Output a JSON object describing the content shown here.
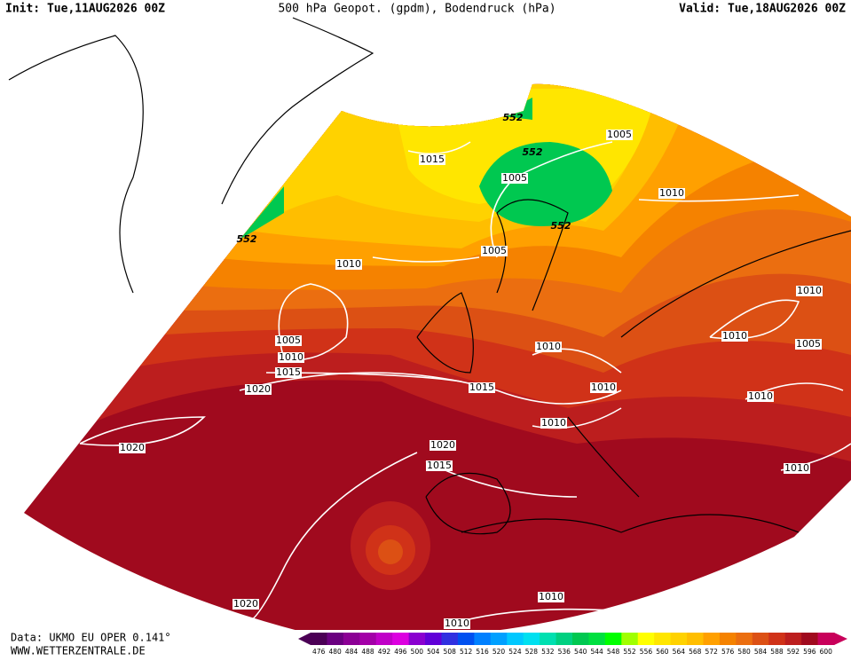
{
  "header": {
    "init": "Init: Tue,11AUG2026 00Z",
    "title": "500 hPa Geopot. (gpdm), Bodendruck (hPa)",
    "valid": "Valid: Tue,18AUG2026 00Z"
  },
  "contour_labels": [
    "552",
    "552",
    "1005",
    "1015",
    "1005",
    "1010",
    "552",
    "552",
    "1005",
    "1010",
    "1010",
    "1010",
    "1005",
    "1010",
    "1005",
    "1010",
    "1015",
    "1020",
    "1015",
    "1010",
    "1010",
    "1010",
    "1020",
    "1020",
    "1015",
    "1010",
    "1010",
    "1020",
    "1010"
  ],
  "footer": {
    "data": "Data: UKMO EU OPER 0.141°",
    "site": "WWW.WETTERZENTRALE.DE"
  },
  "colorbar": {
    "labels": [
      476,
      480,
      484,
      488,
      492,
      496,
      500,
      504,
      508,
      512,
      516,
      520,
      524,
      528,
      532,
      536,
      540,
      544,
      548,
      552,
      556,
      560,
      564,
      568,
      572,
      576,
      580,
      584,
      588,
      592,
      596,
      600
    ],
    "colors": [
      "#4b0055",
      "#6a0080",
      "#8b0095",
      "#a300a8",
      "#c000c8",
      "#dc00e0",
      "#8a00d0",
      "#6000d8",
      "#3030e0",
      "#0050f0",
      "#0080ff",
      "#00a0ff",
      "#00c8ff",
      "#00e0f0",
      "#00e0b0",
      "#00d080",
      "#00c850",
      "#00e040",
      "#00ff00",
      "#a0ff00",
      "#ffff00",
      "#ffe600",
      "#ffd200",
      "#ffbe00",
      "#ffa000",
      "#f58200",
      "#eb6e10",
      "#dc5014",
      "#d03218",
      "#bc1e1e",
      "#a00a1e",
      "#c8005a"
    ]
  }
}
